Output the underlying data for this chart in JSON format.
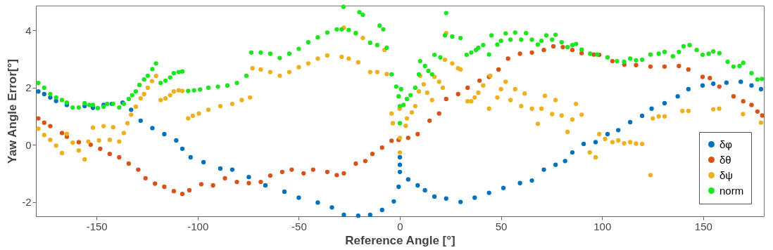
{
  "chart_data": {
    "type": "scatter",
    "xlabel": "Reference Angle [°]",
    "ylabel": "Yaw Angle Error[°]",
    "xlim": [
      -180,
      180
    ],
    "ylim": [
      -2.5,
      4.86
    ],
    "xticks": [
      -150,
      -100,
      -50,
      0,
      50,
      100,
      150
    ],
    "yticks": [
      -2,
      0,
      2,
      4
    ],
    "grid": false,
    "legend": "bottom right",
    "marker": "circle",
    "series": [
      {
        "name": "δφ",
        "color": "#0072bd",
        "x": [
          -178.8,
          -175.9,
          -172.9,
          -170,
          -164.7,
          -155.9,
          -151.8,
          -146.5,
          -142.4,
          -137.1,
          -132.9,
          -128.2,
          -122.4,
          -116.5,
          -110.6,
          -107.6,
          -103.5,
          -97.1,
          -88.8,
          -82.9,
          -74.7,
          -66.5,
          -57.1,
          -50,
          -40.6,
          -33.6,
          -27.7,
          -20.6,
          -14.7,
          -8.8,
          -3,
          -0.6,
          0,
          0,
          0,
          4.1,
          8.8,
          12.4,
          17.1,
          22.9,
          30,
          37,
          44.1,
          51.2,
          59.4,
          65.3,
          71.2,
          77,
          81.7,
          85.3,
          90.9,
          96.8,
          102.7,
          108,
          113.9,
          119.8,
          124.5,
          130.9,
          137.4,
          142.7,
          149.7,
          155,
          161.5,
          168.6,
          173.9,
          178.6
        ],
        "values": [
          1.86,
          1.77,
          1.65,
          1.53,
          1.39,
          1.35,
          1.29,
          1.39,
          1.43,
          1.47,
          1.22,
          0.84,
          0.58,
          0.37,
          0.15,
          -0.14,
          -0.44,
          -0.61,
          -0.83,
          -0.87,
          -1.13,
          -1.42,
          -1.64,
          -1.85,
          -2.02,
          -2.19,
          -2.45,
          -2.48,
          -2.45,
          -2.28,
          -1.98,
          -1.47,
          -0.44,
          -0.7,
          -0.95,
          -1.21,
          -1.42,
          -1.59,
          -1.81,
          -1.88,
          -2.0,
          -1.85,
          -1.68,
          -1.51,
          -1.34,
          -1.25,
          -0.87,
          -0.7,
          -0.57,
          -0.27,
          0.03,
          0.09,
          0.37,
          0.51,
          0.79,
          1.01,
          1.26,
          1.45,
          1.69,
          1.94,
          2.07,
          2.13,
          2.17,
          2.2,
          2.07,
          1.94
        ]
      },
      {
        "name": "δθ",
        "color": "#d95319",
        "x": [
          -178.8,
          -175.9,
          -172.9,
          -167.1,
          -164.7,
          -158.8,
          -152.9,
          -148.2,
          -143.5,
          -138.8,
          -134.1,
          -129.4,
          -125.8,
          -121.1,
          -116.5,
          -111.8,
          -107.6,
          -104.1,
          -98.2,
          -92.4,
          -86.5,
          -80.6,
          -74.7,
          -68.8,
          -64.1,
          -58.2,
          -53.5,
          -47.6,
          -42.9,
          -35.9,
          -31.2,
          -27.7,
          -21.8,
          -17.1,
          -13.6,
          -8.8,
          -4.1,
          -0.6,
          4.1,
          8.8,
          14.7,
          19.4,
          22.9,
          28.8,
          33.5,
          39.4,
          44.1,
          48.8,
          53.5,
          59.4,
          65.3,
          71.2,
          75.9,
          80.6,
          85.3,
          89.9,
          95.9,
          98.6,
          105.1,
          111,
          116.8,
          123.9,
          130.9,
          138,
          142.7,
          149.7,
          153.3,
          158,
          165,
          169.8,
          173.9,
          176.8,
          179.2
        ],
        "values": [
          0.92,
          0.77,
          0.65,
          0.41,
          0.28,
          0.09,
          0,
          -0.14,
          -0.32,
          -0.44,
          -0.66,
          -0.87,
          -1.17,
          -1.36,
          -1.47,
          -1.62,
          -1.72,
          -1.59,
          -1.38,
          -1.42,
          -1.17,
          -1.3,
          -1.34,
          -1.3,
          -1.08,
          -0.95,
          -0.87,
          -1.0,
          -0.87,
          -0.95,
          -1.06,
          -1.0,
          -0.66,
          -0.57,
          -0.32,
          -0.1,
          0.14,
          0.17,
          0.24,
          0.37,
          0.84,
          1.09,
          1.6,
          1.77,
          1.99,
          2.24,
          2.37,
          2.63,
          3.01,
          3.18,
          3.22,
          3.31,
          3.44,
          3.41,
          3.31,
          3.2,
          3.15,
          3.14,
          2.92,
          2.8,
          2.78,
          2.73,
          2.73,
          2.75,
          2.63,
          2.37,
          2.33,
          2.03,
          1.69,
          1.52,
          1.39,
          1.16,
          1.02
        ]
      },
      {
        "name": "δψ",
        "color": "#edb120",
        "x": [
          -178.8,
          -175.9,
          -172.9,
          -170,
          -167.1,
          -164.7,
          -161.8,
          -158.8,
          -155.9,
          -154.1,
          -151.8,
          -148.8,
          -146.5,
          -143.5,
          -141.8,
          -138.8,
          -136.5,
          -134.7,
          -132.9,
          -130.6,
          -128.2,
          -126.5,
          -124.7,
          -122.6,
          -120.6,
          -118.3,
          -115.9,
          -113.6,
          -111.8,
          -109.4,
          -107.6,
          -104.7,
          -102.4,
          -99.4,
          -94.7,
          -88.8,
          -82.9,
          -78.2,
          -74.1,
          -72.9,
          -68.8,
          -64.1,
          -59.4,
          -54.7,
          -50,
          -45.3,
          -40.6,
          -35.9,
          -28.8,
          -27.7,
          -25.3,
          -21.8,
          -20.6,
          -18.3,
          -14.7,
          -11.2,
          -7.6,
          -6.5,
          -4.1,
          -3.5,
          -0.1,
          0,
          0,
          2.9,
          3.5,
          5.9,
          7.6,
          9.4,
          10,
          11.8,
          13.5,
          15.9,
          17.1,
          19.4,
          21.2,
          22.3,
          22.9,
          25.9,
          28.8,
          30,
          33.5,
          35.3,
          37,
          38.8,
          41.2,
          44.1,
          44.7,
          48.2,
          50,
          52.3,
          54.7,
          57,
          60,
          61.7,
          65.3,
          68.2,
          70,
          71.7,
          75.3,
          77,
          80,
          82.9,
          85.3,
          87.1,
          89.9,
          93.9,
          96.8,
          98.6,
          101.5,
          105.1,
          108,
          110.9,
          113.9,
          116.8,
          119.8,
          123.9,
          125.1,
          128,
          130.9,
          139.7,
          142.7,
          155,
          157.9,
          169.7,
          178.6
        ],
        "values": [
          0.56,
          0.34,
          0.17,
          -0.03,
          -0.29,
          0.38,
          0.07,
          -0.2,
          -0.51,
          0.11,
          0.6,
          0.15,
          0.65,
          0.17,
          0.61,
          0.11,
          0.41,
          0.75,
          1.05,
          1.33,
          1.62,
          1.77,
          1.99,
          2.22,
          2.4,
          1.56,
          1.62,
          1.73,
          1.86,
          1.9,
          1.88,
          0.92,
          1.01,
          1.09,
          1.22,
          1.35,
          1.43,
          1.56,
          1.65,
          2.67,
          2.63,
          2.54,
          2.41,
          2.54,
          2.71,
          2.84,
          3.01,
          3.12,
          3.07,
          4.09,
          3.01,
          3.9,
          2.88,
          3.73,
          2.54,
          2.54,
          3.31,
          2.47,
          1.09,
          0.75,
          1.26,
          0.24,
          -0.27,
          0.66,
          0.92,
          1.13,
          1.35,
          1.86,
          2.41,
          2.11,
          1.82,
          1.56,
          2.37,
          2.2,
          1.99,
          2.97,
          3.9,
          2.84,
          2.67,
          2.63,
          1.52,
          1.52,
          1.65,
          1.82,
          2.07,
          1.26,
          2.41,
          1.65,
          1.94,
          2.2,
          1.56,
          1.94,
          1.35,
          1.79,
          1.26,
          0.73,
          1.26,
          1.71,
          1.07,
          1.56,
          1.02,
          0.45,
          0.88,
          1.43,
          1.05,
          -0.27,
          -0.44,
          0.37,
          0.2,
          0.09,
          0.15,
          0.05,
          0.09,
          0.04,
          0.03,
          -1.06,
          0.92,
          0.99,
          0.99,
          1.18,
          1.18,
          1.24,
          1.26,
          1.07,
          0.77
        ]
      },
      {
        "name": "norm",
        "color": "#1ee61e",
        "x": [
          -178.8,
          -175.9,
          -172.9,
          -170,
          -167.1,
          -164.7,
          -161.8,
          -158.8,
          -155.9,
          -153.5,
          -151.8,
          -149.4,
          -146.5,
          -144.7,
          -141.8,
          -138.8,
          -136.5,
          -134.1,
          -132.4,
          -130.6,
          -128.8,
          -126.5,
          -124.7,
          -122.4,
          -120.6,
          -118.3,
          -115.9,
          -113.6,
          -111.8,
          -109.4,
          -107.6,
          -104.7,
          -101.8,
          -98.8,
          -94.7,
          -90,
          -85.3,
          -80.6,
          -75.9,
          -73.5,
          -68.8,
          -64.1,
          -59.4,
          -54.7,
          -50,
          -45.3,
          -40.6,
          -35.9,
          -31.2,
          -28.8,
          -27.9,
          -25.3,
          -21.8,
          -20,
          -18.3,
          -14.7,
          -11.2,
          -10,
          -8.2,
          -6.5,
          -4.1,
          -1.8,
          -0.6,
          0,
          0,
          0.6,
          1.8,
          3.5,
          5.3,
          7.6,
          9.4,
          10,
          12.4,
          14.1,
          15.9,
          17.1,
          20,
          22.3,
          22.9,
          25.9,
          30,
          33,
          35.3,
          37.6,
          38.8,
          41.2,
          44.1,
          45.3,
          48.2,
          50,
          52.3,
          54.7,
          57,
          60,
          62.4,
          65.3,
          68.2,
          70,
          72.4,
          75.3,
          77,
          80,
          82.9,
          85.3,
          87.1,
          89.9,
          94.1,
          97.6,
          102.7,
          107.4,
          110.9,
          113.9,
          116.8,
          119.8,
          123.9,
          128,
          130.9,
          135,
          138,
          140.3,
          143.3,
          146.8,
          149.7,
          152.7,
          155,
          158,
          162.1,
          165,
          168,
          169.8,
          173.9,
          176.8,
          179
        ],
        "values": [
          2.16,
          1.99,
          1.77,
          1.65,
          1.56,
          1.47,
          1.3,
          1.3,
          1.45,
          1.39,
          1.39,
          1.28,
          1.33,
          1.43,
          1.43,
          1.3,
          1.43,
          1.6,
          1.73,
          1.86,
          2.09,
          2.28,
          2.41,
          2.64,
          2.84,
          2.16,
          2.24,
          2.35,
          2.5,
          2.54,
          2.56,
          1.88,
          1.9,
          1.93,
          1.99,
          2.03,
          2.07,
          2.16,
          2.41,
          3.22,
          3.22,
          3.18,
          3.03,
          3.18,
          3.35,
          3.58,
          3.75,
          3.92,
          4.03,
          4.03,
          4.82,
          4.01,
          3.9,
          4.63,
          4.54,
          3.56,
          3.48,
          4.16,
          4.03,
          3.39,
          2.46,
          2.03,
          1.69,
          0.75,
          1.35,
          1.94,
          1.39,
          1.6,
          1.73,
          1.99,
          2.46,
          2.92,
          2.75,
          2.58,
          2.46,
          3.14,
          3.05,
          3.82,
          4.6,
          3.78,
          3.73,
          3.14,
          3.22,
          3.31,
          3.39,
          3.48,
          3.15,
          3.82,
          3.5,
          3.63,
          3.89,
          3.67,
          3.92,
          3.67,
          3.9,
          3.67,
          3.5,
          3.63,
          3.82,
          3.67,
          3.84,
          3.58,
          3.41,
          3.48,
          3.52,
          3.32,
          3.18,
          3.15,
          3.05,
          2.92,
          2.9,
          3.01,
          2.95,
          2.97,
          3.15,
          3.18,
          3.24,
          3.09,
          3.24,
          3.44,
          3.48,
          3.31,
          3.14,
          3.18,
          3.26,
          3.2,
          2.9,
          2.73,
          2.75,
          2.86,
          2.5,
          2.28,
          2.3
        ]
      }
    ]
  }
}
